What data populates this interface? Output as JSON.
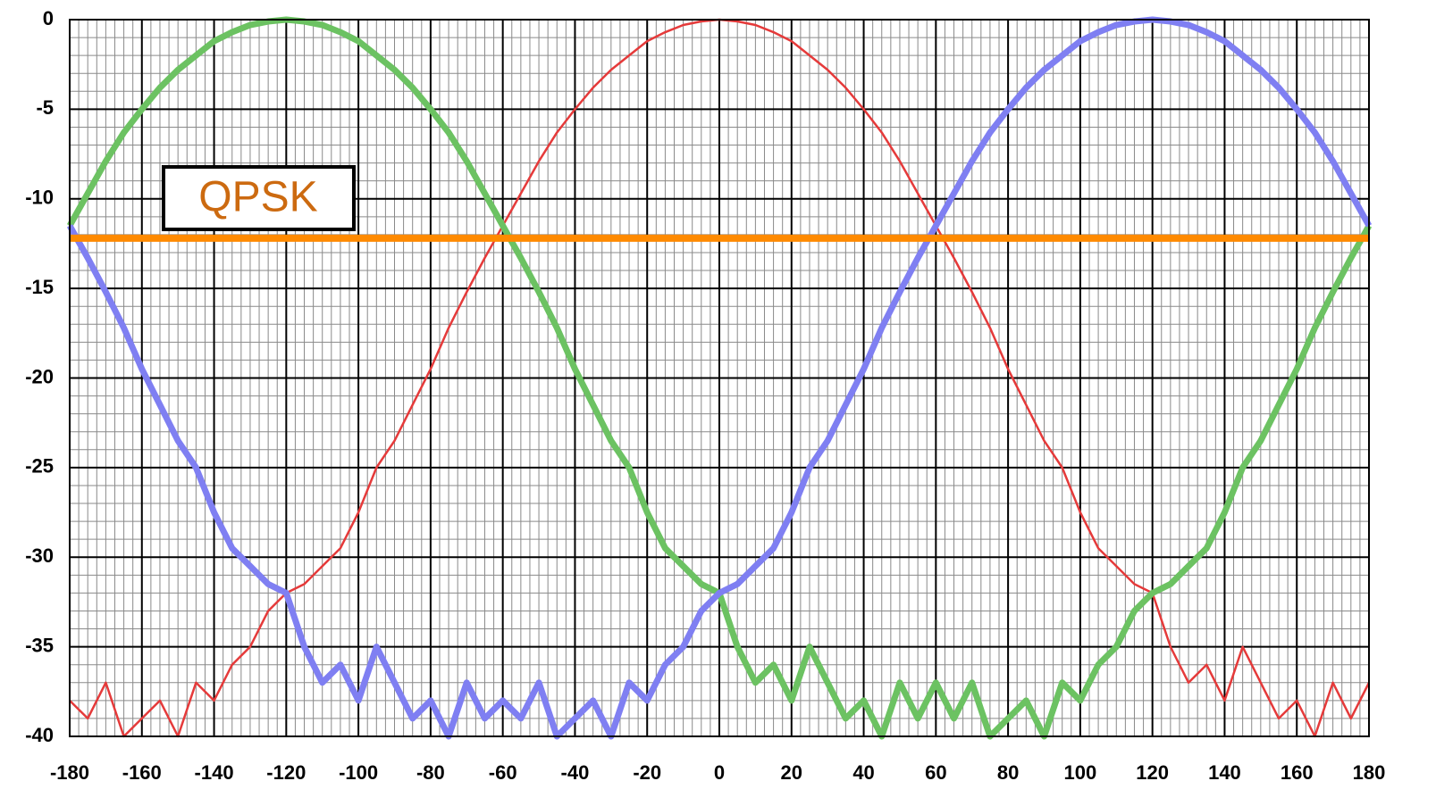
{
  "chart_data": {
    "type": "line",
    "x": [
      -180,
      -175,
      -170,
      -165,
      -160,
      -155,
      -150,
      -145,
      -140,
      -135,
      -130,
      -125,
      -120,
      -115,
      -110,
      -105,
      -100,
      -95,
      -90,
      -85,
      -80,
      -75,
      -70,
      -65,
      -60,
      -55,
      -50,
      -45,
      -40,
      -35,
      -30,
      -25,
      -20,
      -15,
      -10,
      -5,
      0,
      5,
      10,
      15,
      20,
      25,
      30,
      35,
      40,
      45,
      50,
      55,
      60,
      65,
      70,
      75,
      80,
      85,
      90,
      95,
      100,
      105,
      110,
      115,
      120,
      125,
      130,
      135,
      140,
      145,
      150,
      155,
      160,
      165,
      170,
      175,
      180
    ],
    "series": [
      {
        "color": "#e53a3a",
        "width": 2.5,
        "values": [
          -38,
          -39,
          -37,
          -40,
          -39,
          -38,
          -40,
          -37,
          -38,
          -36,
          -35,
          -33,
          -32,
          -31.5,
          -30.5,
          -29.5,
          -27.5,
          -25,
          -23.5,
          -21.5,
          -19.5,
          -17.2,
          -15.2,
          -13.3,
          -11.5,
          -9.7,
          -7.9,
          -6.3,
          -5,
          -3.8,
          -2.8,
          -2,
          -1.2,
          -0.7,
          -0.3,
          -0.1,
          0,
          -0.1,
          -0.3,
          -0.7,
          -1.2,
          -2,
          -2.8,
          -3.8,
          -5,
          -6.3,
          -7.9,
          -9.7,
          -11.5,
          -13.3,
          -15.2,
          -17.2,
          -19.5,
          -21.5,
          -23.5,
          -25,
          -27.5,
          -29.5,
          -30.5,
          -31.5,
          -32,
          -35,
          -37,
          -36,
          -38,
          -35,
          -37,
          -39,
          -38,
          -40,
          -37,
          -39,
          -37
        ]
      },
      {
        "color": "#6cc262",
        "width": 7,
        "values": [
          -11.5,
          -9.7,
          -7.9,
          -6.3,
          -5,
          -3.8,
          -2.8,
          -2,
          -1.2,
          -0.7,
          -0.3,
          -0.1,
          0,
          -0.1,
          -0.3,
          -0.7,
          -1.2,
          -2,
          -2.8,
          -3.8,
          -5,
          -6.3,
          -7.9,
          -9.7,
          -11.5,
          -13.3,
          -15.2,
          -17.2,
          -19.5,
          -21.5,
          -23.5,
          -25,
          -27.5,
          -29.5,
          -30.5,
          -31.5,
          -32,
          -35,
          -37,
          -36,
          -38,
          -35,
          -37,
          -39,
          -38,
          -40,
          -37,
          -39,
          -37,
          -39,
          -37,
          -40,
          -39,
          -38,
          -40,
          -37,
          -38,
          -36,
          -35,
          -33,
          -32,
          -31.5,
          -30.5,
          -29.5,
          -27.5,
          -25,
          -23.5,
          -21.5,
          -19.5,
          -17.2,
          -15.2,
          -13.3,
          -11.5
        ]
      },
      {
        "color": "#7f7ff2",
        "width": 7,
        "values": [
          -11.5,
          -13.3,
          -15.2,
          -17.2,
          -19.5,
          -21.5,
          -23.5,
          -25,
          -27.5,
          -29.5,
          -30.5,
          -31.5,
          -32,
          -35,
          -37,
          -36,
          -38,
          -35,
          -37,
          -39,
          -38,
          -40,
          -37,
          -39,
          -38,
          -39,
          -37,
          -40,
          -39,
          -38,
          -40,
          -37,
          -38,
          -36,
          -35,
          -33,
          -32,
          -31.5,
          -30.5,
          -29.5,
          -27.5,
          -25,
          -23.5,
          -21.5,
          -19.5,
          -17.2,
          -15.2,
          -13.3,
          -11.5,
          -9.7,
          -7.9,
          -6.3,
          -5,
          -3.8,
          -2.8,
          -2,
          -1.2,
          -0.7,
          -0.3,
          -0.1,
          0,
          -0.1,
          -0.3,
          -0.7,
          -1.2,
          -2,
          -2.8,
          -3.8,
          -5,
          -6.3,
          -7.9,
          -9.7,
          -11.5
        ]
      }
    ],
    "hline": {
      "value": -12.2,
      "color": "#ff8a00",
      "label": "QPSK",
      "label_color": "#cc6a10"
    },
    "xlim": [
      -180,
      180
    ],
    "xticks": [
      -180,
      -160,
      -140,
      -120,
      -100,
      -80,
      -60,
      -40,
      -20,
      0,
      20,
      40,
      60,
      80,
      100,
      120,
      140,
      160,
      180
    ],
    "ylim": [
      -40,
      0
    ],
    "yticks": [
      0,
      -5,
      -10,
      -15,
      -20,
      -25,
      -30,
      -35,
      -40
    ],
    "grid": true,
    "minor_grid": true
  }
}
